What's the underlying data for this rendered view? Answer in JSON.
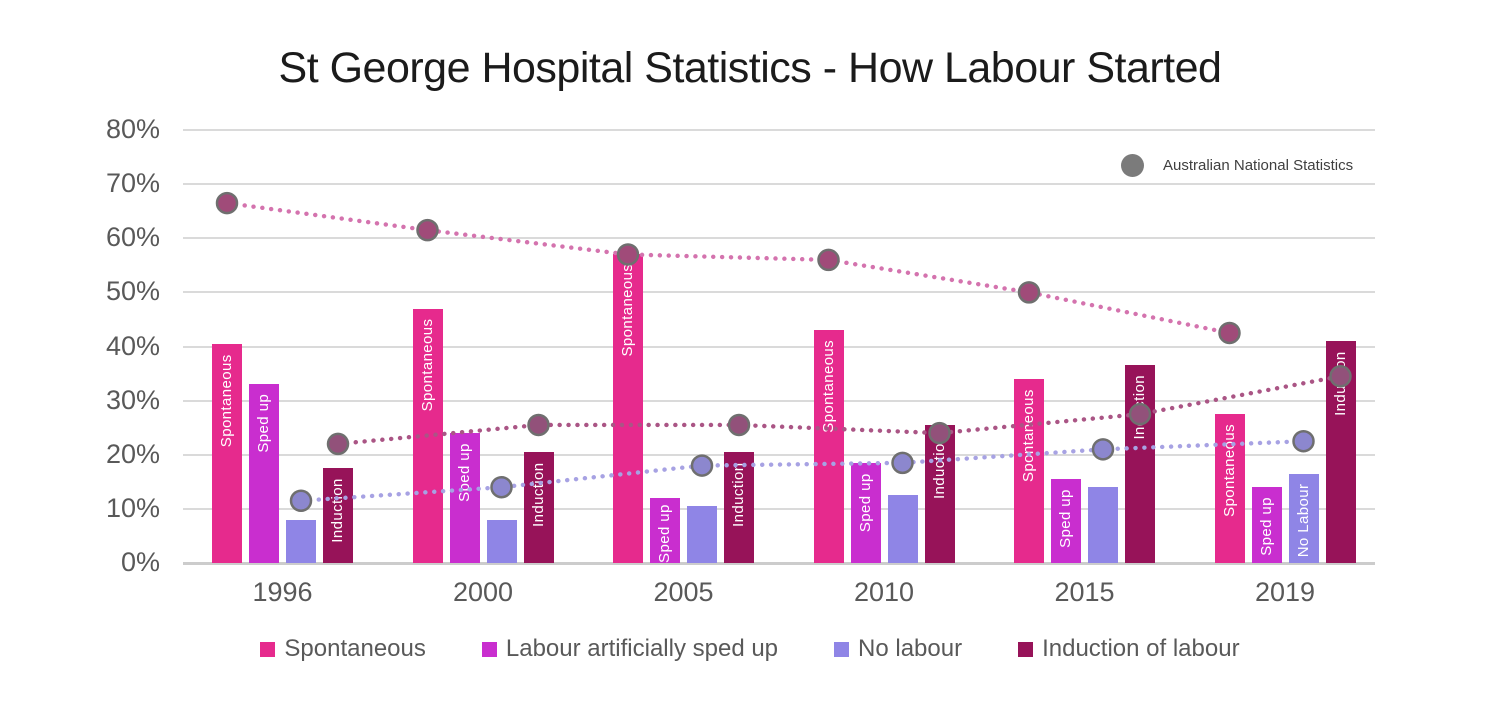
{
  "title": "St George Hospital Statistics - How Labour Started",
  "national_legend_label": "Australian National Statistics",
  "colors": {
    "title_text": "#1b1b1b",
    "axis_text": "#595959",
    "gridline": "#dadada",
    "marker_stroke": "#6f6f6f",
    "national_legend_dot": "#7b7b7b"
  },
  "chart_data": {
    "type": "bar",
    "title": "St George Hospital Statistics - How Labour Started",
    "categories": [
      "1996",
      "2000",
      "2005",
      "2010",
      "2015",
      "2019"
    ],
    "ylim": [
      0,
      80
    ],
    "ytick_step": 10,
    "ytick_suffix": "%",
    "grid": true,
    "legend_position": "bottom",
    "series": [
      {
        "name": "Spontaneous",
        "color": "#e62a8d",
        "values": [
          40.5,
          47,
          57,
          43,
          34,
          27.5
        ],
        "in_bar_label": "Spontaneous",
        "label_shown": [
          true,
          true,
          true,
          true,
          true,
          true
        ]
      },
      {
        "name": "Labour artificially sped up",
        "color": "#c92ecf",
        "values": [
          33,
          24,
          12,
          18.5,
          15.5,
          14
        ],
        "in_bar_label": "Sped up",
        "label_shown": [
          true,
          true,
          true,
          true,
          true,
          true
        ]
      },
      {
        "name": "No labour",
        "color": "#8f85e6",
        "values": [
          8,
          8,
          10.5,
          12.5,
          14,
          16.5
        ],
        "in_bar_label": "No Labour",
        "label_shown": [
          false,
          false,
          false,
          false,
          false,
          true
        ]
      },
      {
        "name": "Induction of labour",
        "color": "#971359",
        "values": [
          17.5,
          20.5,
          20.5,
          25.5,
          36.5,
          41
        ],
        "in_bar_label": "Induction",
        "label_shown": [
          true,
          true,
          true,
          true,
          true,
          true
        ]
      }
    ],
    "national_series": [
      {
        "name": "Spontaneous (Australian National Statistics)",
        "line_color": "#d473ae",
        "marker_fill": "#a04b79",
        "values": [
          66.5,
          61.5,
          57,
          56,
          50,
          42.5
        ],
        "over_bar": "Spontaneous"
      },
      {
        "name": "No labour (Australian National Statistics)",
        "line_color": "#a7a2e3",
        "marker_fill": "#8c87ce",
        "values": [
          11.5,
          14,
          18,
          18.5,
          21,
          22.5
        ],
        "over_bar": "No labour"
      },
      {
        "name": "Induction of labour (Australian National Statistics)",
        "line_color": "#aa5585",
        "marker_fill": "#92517a",
        "values": [
          22,
          25.5,
          25.5,
          24,
          27.5,
          34.5
        ],
        "over_bar": "Induction of labour"
      }
    ]
  }
}
